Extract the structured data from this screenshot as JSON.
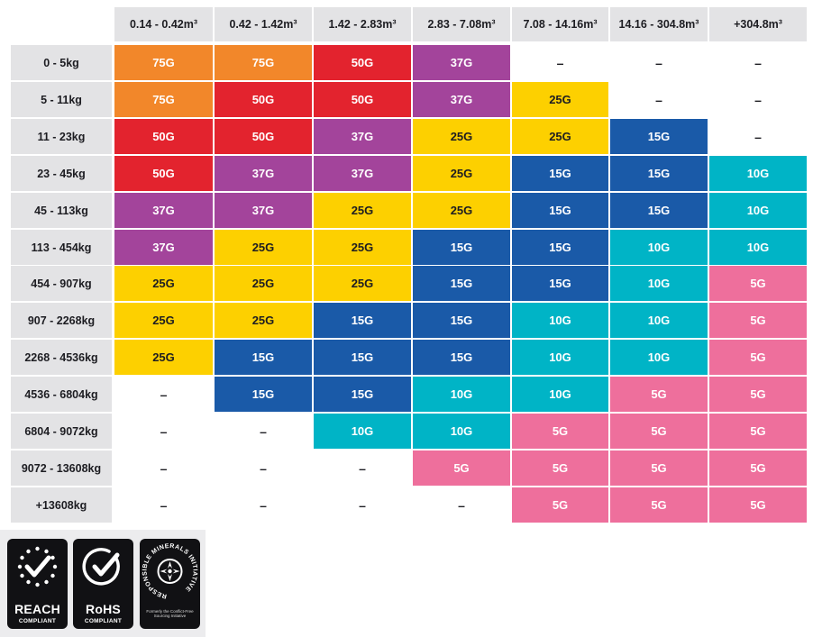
{
  "chart_data": {
    "type": "table",
    "columns": [
      "0.14 - 0.42m³",
      "0.42 - 1.42m³",
      "1.42 - 2.83m³",
      "2.83 - 7.08m³",
      "7.08 - 14.16m³",
      "14.16 - 304.8m³",
      "+304.8m³"
    ],
    "rows": [
      {
        "label": "0 - 5kg",
        "values": [
          "75G",
          "75G",
          "50G",
          "37G",
          "–",
          "–",
          "–"
        ]
      },
      {
        "label": "5 - 11kg",
        "values": [
          "75G",
          "50G",
          "50G",
          "37G",
          "25G",
          "–",
          "–"
        ]
      },
      {
        "label": "11 - 23kg",
        "values": [
          "50G",
          "50G",
          "37G",
          "25G",
          "25G",
          "15G",
          "–"
        ]
      },
      {
        "label": "23 - 45kg",
        "values": [
          "50G",
          "37G",
          "37G",
          "25G",
          "15G",
          "15G",
          "10G"
        ]
      },
      {
        "label": "45 - 113kg",
        "values": [
          "37G",
          "37G",
          "25G",
          "25G",
          "15G",
          "15G",
          "10G"
        ]
      },
      {
        "label": "113 - 454kg",
        "values": [
          "37G",
          "25G",
          "25G",
          "15G",
          "15G",
          "10G",
          "10G"
        ]
      },
      {
        "label": "454 - 907kg",
        "values": [
          "25G",
          "25G",
          "25G",
          "15G",
          "15G",
          "10G",
          "5G"
        ]
      },
      {
        "label": "907 - 2268kg",
        "values": [
          "25G",
          "25G",
          "15G",
          "15G",
          "10G",
          "10G",
          "5G"
        ]
      },
      {
        "label": "2268 - 4536kg",
        "values": [
          "25G",
          "15G",
          "15G",
          "15G",
          "10G",
          "10G",
          "5G"
        ]
      },
      {
        "label": "4536 - 6804kg",
        "values": [
          "–",
          "15G",
          "15G",
          "10G",
          "10G",
          "5G",
          "5G"
        ]
      },
      {
        "label": "6804 - 9072kg",
        "values": [
          "–",
          "–",
          "10G",
          "10G",
          "5G",
          "5G",
          "5G"
        ]
      },
      {
        "label": "9072 - 13608kg",
        "values": [
          "–",
          "–",
          "–",
          "5G",
          "5G",
          "5G",
          "5G"
        ]
      },
      {
        "label": "+13608kg",
        "values": [
          "–",
          "–",
          "–",
          "–",
          "5G",
          "5G",
          "5G"
        ]
      }
    ],
    "colors": {
      "75G": "#f2872a",
      "50G": "#e3232e",
      "37G": "#a3449b",
      "25G": "#fdd000",
      "15G": "#1a5aa8",
      "10G": "#00b4c6",
      "5G": "#ee6f9c",
      "–": "transparent"
    },
    "header_background": "#e3e3e5"
  },
  "badges": [
    {
      "title": "REACH",
      "subtitle": "COMPLIANT",
      "icon": "eu-stars-check-icon"
    },
    {
      "title": "RoHS",
      "subtitle": "COMPLIANT",
      "icon": "circle-check-icon"
    },
    {
      "title": "RESPONSIBLE MINERALS INITIATIVE",
      "subtitle": "Formerly the Conflict-Free Sourcing Initiative",
      "icon": "rmi-seal-icon"
    }
  ]
}
